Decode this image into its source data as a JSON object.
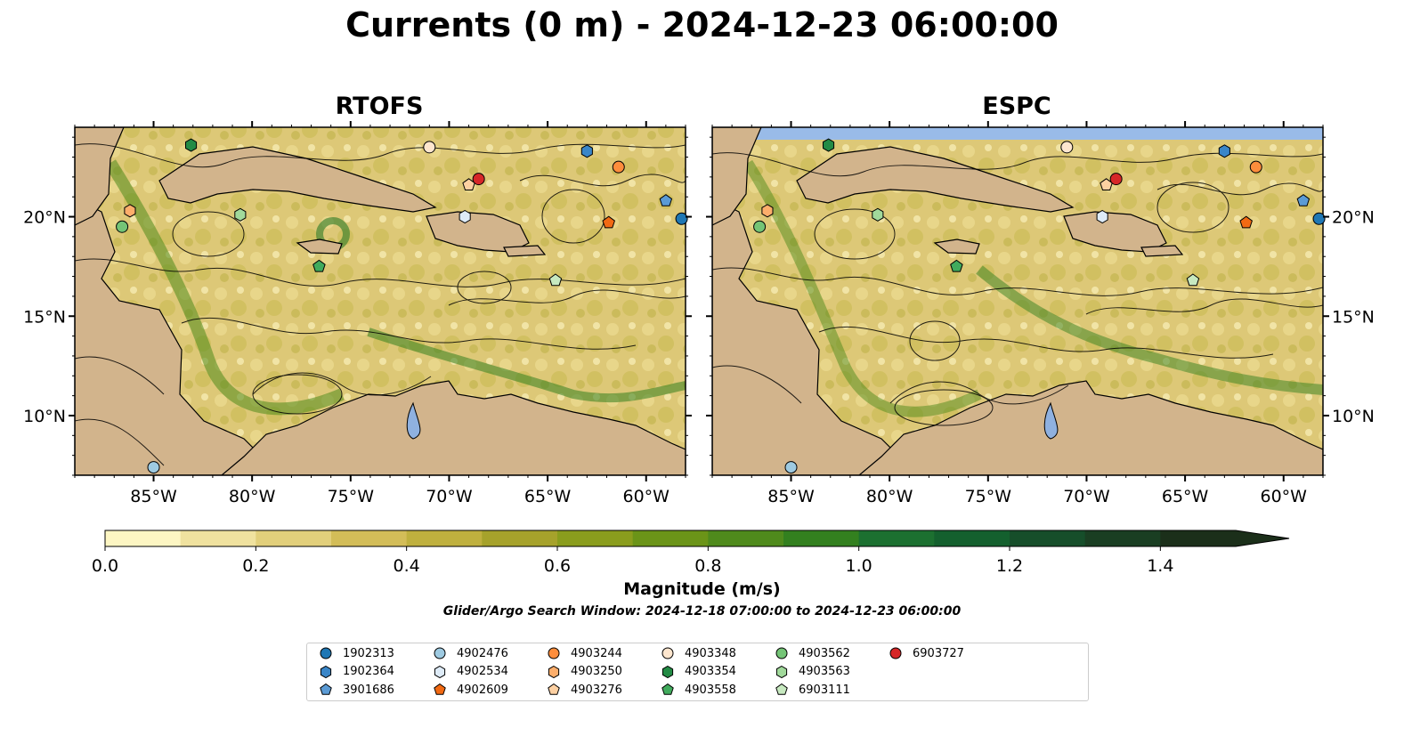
{
  "title": "Currents (0 m) - 2024-12-23 06:00:00",
  "panels": [
    {
      "title": "RTOFS"
    },
    {
      "title": "ESPC"
    }
  ],
  "map": {
    "lon_range": [
      -89.0,
      -58.0
    ],
    "lat_range": [
      7.0,
      24.5
    ],
    "lon_ticks": [
      -85,
      -80,
      -75,
      -70,
      -65,
      -60
    ],
    "lon_tick_labels": [
      "85°W",
      "80°W",
      "75°W",
      "70°W",
      "65°W",
      "60°W"
    ],
    "lat_ticks": [
      10,
      15,
      20
    ],
    "lat_tick_labels": [
      "10°N",
      "15°N",
      "20°N"
    ],
    "land_color": "#d2b48c",
    "water_color": "#99bbe8"
  },
  "colorbar": {
    "label": "Magnitude (m/s)",
    "min": 0.0,
    "max": 1.5,
    "step": 0.1,
    "extend": "max",
    "tick_values": [
      0.0,
      0.2,
      0.4,
      0.6,
      0.8,
      1.0,
      1.2,
      1.4
    ],
    "tick_labels": [
      "0.0",
      "0.2",
      "0.4",
      "0.6",
      "0.8",
      "1.0",
      "1.2",
      "1.4"
    ],
    "colors": [
      "#fdf6c3",
      "#f0e29f",
      "#e2cf7b",
      "#d3bd58",
      "#bfb03e",
      "#a6a22b",
      "#8a9d1d",
      "#6b9418",
      "#4f8a1c",
      "#33801f",
      "#1c7030",
      "#14602e",
      "#164e2a",
      "#1a3e22",
      "#1b2f1a"
    ]
  },
  "search_window": "Glider/Argo Search Window: 2024-12-18 07:00:00 to 2024-12-23 06:00:00",
  "floats": [
    {
      "id": "1902313",
      "marker": "circle",
      "color": "#1f77b4",
      "lon": -58.2,
      "lat": 19.9
    },
    {
      "id": "1902364",
      "marker": "hexagon",
      "color": "#3a86c8",
      "lon": -63.0,
      "lat": 23.3
    },
    {
      "id": "3901686",
      "marker": "pentagon",
      "color": "#5b9bd5",
      "lon": -59.0,
      "lat": 20.8
    },
    {
      "id": "4902476",
      "marker": "circle",
      "color": "#9ecae1",
      "lon": -85.0,
      "lat": 7.4
    },
    {
      "id": "4902534",
      "marker": "hexagon",
      "color": "#deebf7",
      "lon": -69.2,
      "lat": 20.0
    },
    {
      "id": "4902609",
      "marker": "pentagon",
      "color": "#f16913",
      "lon": -61.9,
      "lat": 19.7
    },
    {
      "id": "4903244",
      "marker": "circle",
      "color": "#fd8d3c",
      "lon": -61.4,
      "lat": 22.5
    },
    {
      "id": "4903250",
      "marker": "hexagon",
      "color": "#fdae6b",
      "lon": -86.2,
      "lat": 20.3
    },
    {
      "id": "4903276",
      "marker": "pentagon",
      "color": "#fdd0a2",
      "lon": -69.0,
      "lat": 21.6
    },
    {
      "id": "4903348",
      "marker": "circle",
      "color": "#fee6ce",
      "lon": -71.0,
      "lat": 23.5
    },
    {
      "id": "4903354",
      "marker": "hexagon",
      "color": "#238b45",
      "lon": -83.1,
      "lat": 23.6
    },
    {
      "id": "4903558",
      "marker": "pentagon",
      "color": "#41ab5d",
      "lon": -76.6,
      "lat": 17.5
    },
    {
      "id": "4903562",
      "marker": "circle",
      "color": "#74c476",
      "lon": -86.6,
      "lat": 19.5
    },
    {
      "id": "4903563",
      "marker": "hexagon",
      "color": "#a1d99b",
      "lon": -80.6,
      "lat": 20.1
    },
    {
      "id": "6903111",
      "marker": "pentagon",
      "color": "#c7e9c0",
      "lon": -64.6,
      "lat": 16.8
    },
    {
      "id": "6903727",
      "marker": "circle",
      "color": "#d62728",
      "lon": -68.5,
      "lat": 21.9
    }
  ]
}
